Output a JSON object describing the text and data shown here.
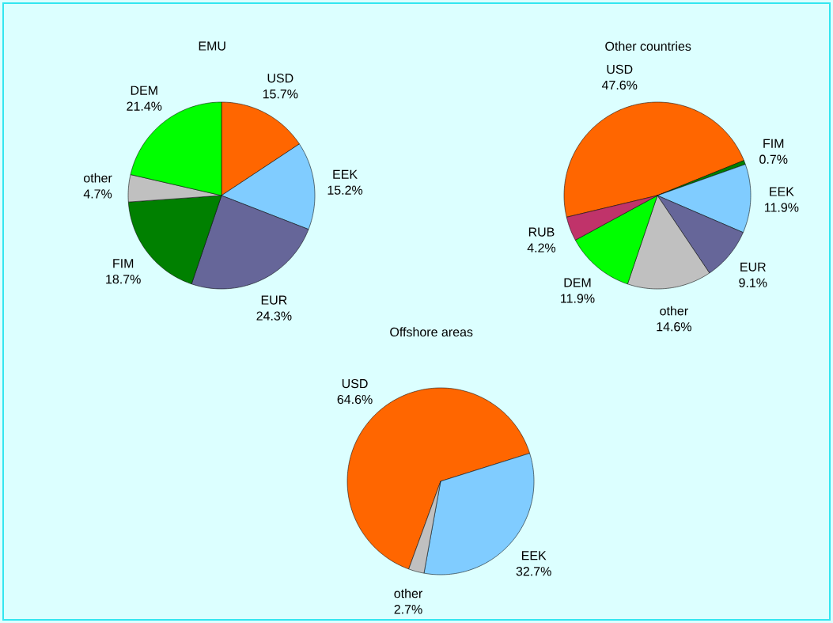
{
  "chart_data": [
    {
      "type": "pie",
      "title": "EMU",
      "categories": [
        "USD",
        "EEK",
        "EUR",
        "FIM",
        "other",
        "DEM"
      ],
      "values": [
        15.7,
        15.2,
        24.3,
        18.7,
        4.7,
        21.4
      ],
      "colors": [
        "#ff6600",
        "#80ccff",
        "#666699",
        "#008000",
        "#c0c0c0",
        "#00ff00"
      ],
      "value_labels": [
        "15.7%",
        "15.2%",
        "24.3%",
        "18.7%",
        "4.7%",
        "21.4%"
      ]
    },
    {
      "type": "pie",
      "title": "Other countries",
      "categories": [
        "USD",
        "FIM",
        "EEK",
        "EUR",
        "other",
        "DEM",
        "RUB"
      ],
      "values": [
        47.6,
        0.7,
        11.9,
        9.1,
        14.6,
        11.9,
        4.2
      ],
      "colors": [
        "#ff6600",
        "#008000",
        "#80ccff",
        "#666699",
        "#c0c0c0",
        "#00ff00",
        "#c0336a"
      ],
      "value_labels": [
        "47.6%",
        "0.7%",
        "11.9%",
        "9.1%",
        "14.6%",
        "11.9%",
        "4.2%"
      ]
    },
    {
      "type": "pie",
      "title": "Offshore areas",
      "categories": [
        "USD",
        "EEK",
        "other"
      ],
      "values": [
        64.6,
        32.7,
        2.7
      ],
      "colors": [
        "#ff6600",
        "#80ccff",
        "#c0c0c0"
      ],
      "value_labels": [
        "64.6%",
        "32.7%",
        "2.7%"
      ]
    }
  ]
}
